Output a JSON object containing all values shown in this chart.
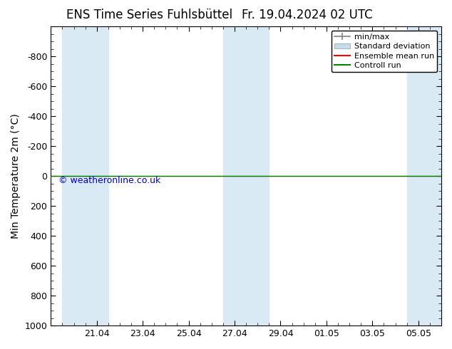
{
  "title_left": "ENS Time Series Fuhlsbüttel",
  "title_right": "Fr. 19.04.2024 02 UTC",
  "ylabel": "Min Temperature 2m (°C)",
  "copyright": "© weatheronline.co.uk",
  "ylim_bottom": 1000,
  "ylim_top": -1000,
  "yticks": [
    -800,
    -600,
    -400,
    -200,
    0,
    200,
    400,
    600,
    800,
    1000
  ],
  "xtick_labels": [
    "21.04",
    "23.04",
    "25.04",
    "27.04",
    "29.04",
    "01.05",
    "03.05",
    "05.05"
  ],
  "xtick_positions": [
    2,
    4,
    6,
    8,
    10,
    12,
    14,
    16
  ],
  "x_min": 0,
  "x_max": 17,
  "shaded_columns": [
    {
      "x_start": 0.5,
      "x_end": 2.5
    },
    {
      "x_start": 7.5,
      "x_end": 9.5
    },
    {
      "x_start": 15.5,
      "x_end": 17.0
    }
  ],
  "green_line_y": 0,
  "red_line_y": 0,
  "shaded_color": "#daeaf5",
  "green_line_color": "#008000",
  "red_line_color": "#ff0000",
  "legend_items": [
    "min/max",
    "Standard deviation",
    "Ensemble mean run",
    "Controll run"
  ],
  "legend_line_color": "#808080",
  "legend_std_facecolor": "#c8dce8",
  "legend_std_edgecolor": "#a0b8c8",
  "legend_red": "#ff0000",
  "legend_green": "#008000",
  "bg_color": "#ffffff",
  "plot_bg_color": "#ffffff",
  "copyright_color": "#0000cc",
  "title_fontsize": 12,
  "axis_fontsize": 10,
  "tick_fontsize": 9,
  "legend_fontsize": 8
}
